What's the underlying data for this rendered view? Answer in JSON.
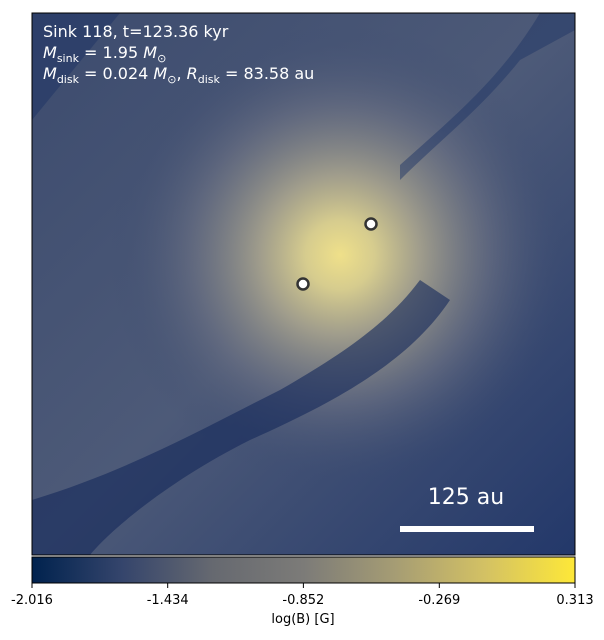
{
  "chart_data": {
    "type": "heatmap",
    "annotations": [
      {
        "text": "Sink 118, t=123.36 kyr"
      },
      {
        "parts": [
          {
            "italic": "M"
          },
          {
            "sub": "sink"
          },
          {
            "text": " = 1.95 "
          },
          {
            "italic": "M"
          },
          {
            "sub": "⊙"
          }
        ]
      },
      {
        "parts": [
          {
            "italic": "M"
          },
          {
            "sub": "disk"
          },
          {
            "text": " = 0.024 "
          },
          {
            "italic": "M"
          },
          {
            "sub": "⊙"
          },
          {
            "text": ", "
          },
          {
            "italic": "R"
          },
          {
            "sub": "disk"
          },
          {
            "text": " = 83.58 au"
          }
        ]
      }
    ],
    "scale_bar": "125 au",
    "colorbar_label": "log(B) [G]",
    "clim": [
      -2.016,
      0.313
    ],
    "cticks": [
      -2.016,
      -1.434,
      -0.852,
      -0.269,
      0.313
    ],
    "colormap": [
      "#00224e",
      "#35456c",
      "#666970",
      "#7c7b78",
      "#a59c74",
      "#d3c164",
      "#fee838"
    ]
  }
}
